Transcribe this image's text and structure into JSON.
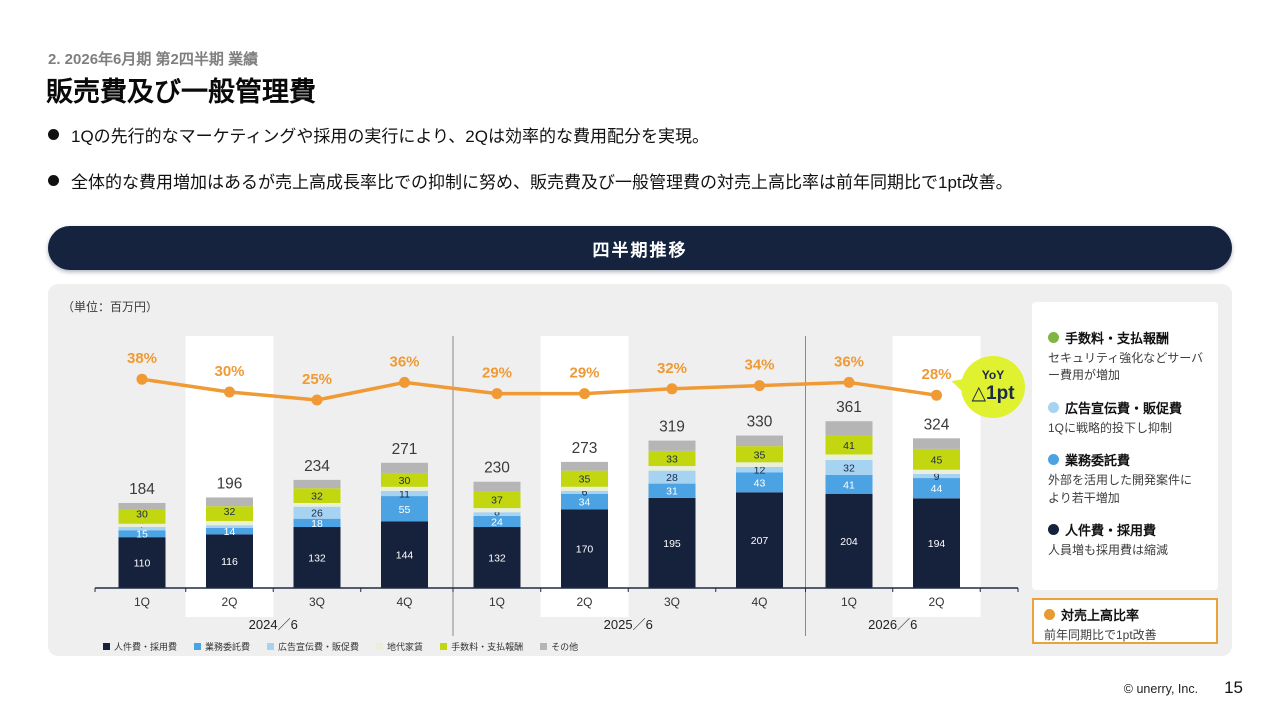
{
  "header": {
    "eyebrow": "2. 2026年6月期 第2四半期 業績",
    "title": "販売費及び一般管理費",
    "bullets": [
      "1Qの先行的なマーケティングや採用の実行により、2Qは効率的な費用配分を実現。",
      "全体的な費用増加はあるが売上高成長率比での抑制に努め、販売費及び一般管理費の対売上高比率は前年同期比で1pt改善。"
    ]
  },
  "banner": {
    "label": "四半期推移"
  },
  "chart_data": {
    "type": "stacked-bar-with-line",
    "unit_label": "（単位：百万円）",
    "categories": [
      "1Q",
      "2Q",
      "3Q",
      "4Q",
      "1Q",
      "2Q",
      "3Q",
      "4Q",
      "1Q",
      "2Q"
    ],
    "group_labels": [
      {
        "label": "2024／6",
        "from": 0,
        "to": 3
      },
      {
        "label": "2025／6",
        "from": 4,
        "to": 7
      },
      {
        "label": "2026／6",
        "from": 8,
        "to": 9
      }
    ],
    "series": [
      {
        "name": "人件費・採用費",
        "color": "#16213c",
        "labeled": true,
        "label_color": "#ffffff",
        "values": [
          110,
          116,
          132,
          144,
          132,
          170,
          195,
          207,
          204,
          194
        ]
      },
      {
        "name": "業務委託費",
        "color": "#4ba3e3",
        "labeled": true,
        "label_color": "#ffffff",
        "values": [
          15,
          14,
          18,
          55,
          24,
          34,
          31,
          43,
          41,
          44
        ]
      },
      {
        "name": "広告宣伝費・販促費",
        "color": "#a6d3f2",
        "labeled": true,
        "label_color": "#1b2a46",
        "values": [
          7,
          6,
          26,
          11,
          8,
          6,
          28,
          12,
          32,
          9
        ]
      },
      {
        "name": "地代家賃",
        "color": "#e9efd8",
        "labeled": false,
        "label_color": "#1b2a46",
        "estimated": true,
        "values": [
          7,
          9,
          8,
          9,
          9,
          9,
          10,
          10,
          12,
          9
        ]
      },
      {
        "name": "手数料・支払報酬",
        "color": "#c3d711",
        "labeled": true,
        "label_color": "#1b2a46",
        "values": [
          30,
          32,
          32,
          30,
          37,
          35,
          33,
          35,
          41,
          45
        ]
      },
      {
        "name": "その他",
        "color": "#b5b5b5",
        "labeled": false,
        "label_color": "#1b2a46",
        "estimated": true,
        "values": [
          15,
          19,
          18,
          22,
          20,
          19,
          22,
          23,
          31,
          23
        ]
      }
    ],
    "totals": [
      184,
      196,
      234,
      271,
      230,
      273,
      319,
      330,
      361,
      324
    ],
    "line": {
      "name": "対売上高比率",
      "color": "#ef9a35",
      "values_pct": [
        38,
        30,
        25,
        36,
        29,
        29,
        32,
        34,
        36,
        28
      ]
    },
    "highlight_band_indices": [
      1,
      5,
      9
    ]
  },
  "side_legend": {
    "items": [
      {
        "dot_color": "#7fb543",
        "title": "手数料・支払報酬",
        "desc": "セキュリティ強化などサーバー費用が増加"
      },
      {
        "dot_color": "#a6d3f2",
        "title": "広告宣伝費・販促費",
        "desc": "1Qに戦略的投下し抑制"
      },
      {
        "dot_color": "#4ba3e3",
        "title": "業務委託費",
        "desc": "外部を活用した開発案件により若干増加"
      },
      {
        "dot_color": "#16213c",
        "title": "人件費・採用費",
        "desc": "人員増も採用費は縮減"
      }
    ]
  },
  "ratio_box": {
    "dot_color": "#e89a35",
    "title": "対売上高比率",
    "desc": "前年同期比で1pt改善"
  },
  "yoy_badge": {
    "line1": "YoY",
    "line2": "△1pt",
    "bg": "#dff12f"
  },
  "footer": {
    "copyright": "© unerry, Inc.",
    "page": "15"
  }
}
